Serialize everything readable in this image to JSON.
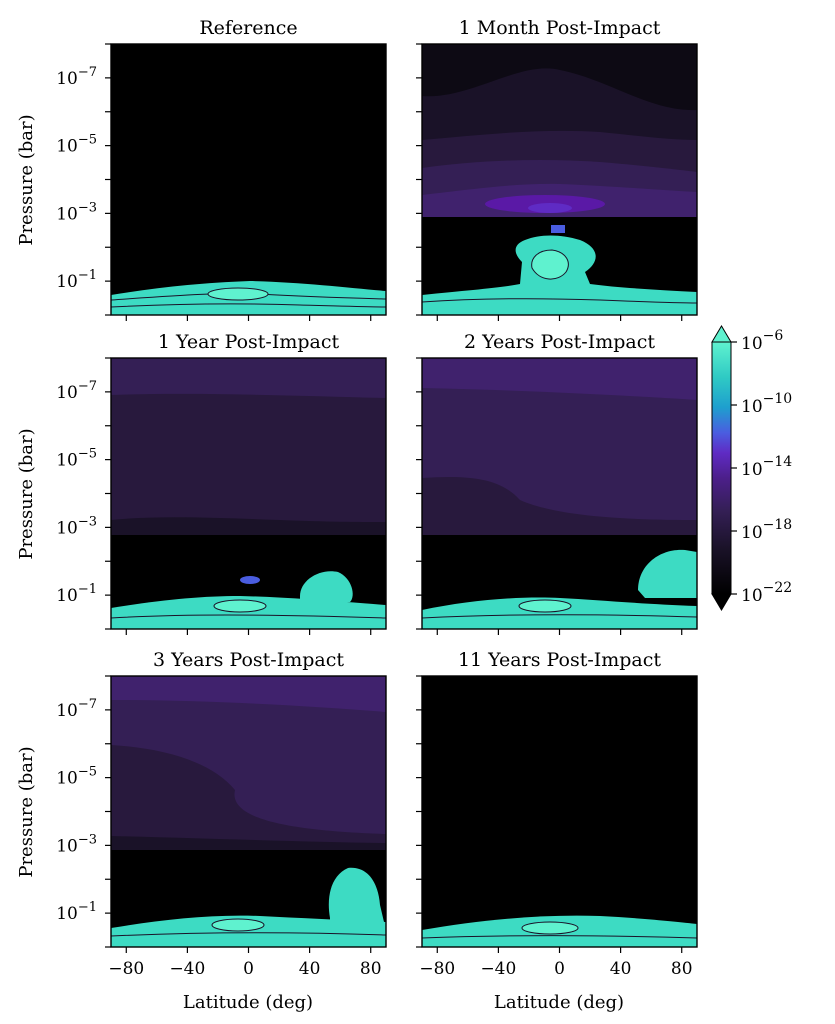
{
  "figure": {
    "ylabel": "Pressure (bar)",
    "xlabel": "Latitude (deg)"
  },
  "colorbar": {
    "tick_exponents": [
      "-6",
      "-10",
      "-14",
      "-18",
      "-22"
    ],
    "colors": [
      "#000000",
      "#0d0a14",
      "#1a1228",
      "#28193d",
      "#341f55",
      "#40226d",
      "#4c1f8a",
      "#5a19a6",
      "#5f2bc4",
      "#4a5de0",
      "#2a82d6",
      "#1e9fce",
      "#23b7c8",
      "#2fcac4",
      "#3ddbc3",
      "#4be8c8",
      "#5ff2cf"
    ]
  },
  "chart_data": [
    {
      "type": "heatmap",
      "title": "Reference",
      "x_ticks": [
        -80,
        -40,
        0,
        40,
        80
      ],
      "x_tick_labels": [
        "−80",
        "−40",
        "0",
        "40",
        "80"
      ],
      "xlim": [
        -90,
        90
      ],
      "y_scale": "log",
      "y_tick_exponents": [
        "-7",
        "-5",
        "-3",
        "-1"
      ],
      "ylim_bar": [
        1,
        1e-08
      ],
      "features": [
        "cyan haze layer near 0.1–1 bar at all latitudes",
        "black above"
      ]
    },
    {
      "type": "heatmap",
      "title": "1 Month Post-Impact",
      "x_ticks": [
        -80,
        -40,
        0,
        40,
        80
      ],
      "x_tick_labels": [
        "−80",
        "−40",
        "0",
        "40",
        "80"
      ],
      "xlim": [
        -90,
        90
      ],
      "y_scale": "log",
      "y_tick_exponents": [
        "-7",
        "-5",
        "-3",
        "-1"
      ],
      "features": [
        "purple layers above 1e-3 bar",
        "cyan plume centred near 0 deg rising to ~1e-3 bar"
      ]
    },
    {
      "type": "heatmap",
      "title": "1 Year Post-Impact",
      "x_ticks": [
        -80,
        -40,
        0,
        40,
        80
      ],
      "x_tick_labels": [
        "−80",
        "−40",
        "0",
        "40",
        "80"
      ],
      "xlim": [
        -90,
        90
      ],
      "y_scale": "log",
      "y_tick_exponents": [
        "-7",
        "-5",
        "-3",
        "-1"
      ],
      "features": [
        "uniform purple above 1e-3 bar",
        "cyan blob near 50 deg"
      ]
    },
    {
      "type": "heatmap",
      "title": "2 Years Post-Impact",
      "x_ticks": [
        -80,
        -40,
        0,
        40,
        80
      ],
      "x_tick_labels": [
        "−80",
        "−40",
        "0",
        "40",
        "80"
      ],
      "xlim": [
        -90,
        90
      ],
      "y_scale": "log",
      "y_tick_exponents": [
        "-7",
        "-5",
        "-3",
        "-1"
      ],
      "features": [
        "purple above 1e-3 bar",
        "cyan blob near 75 deg"
      ]
    },
    {
      "type": "heatmap",
      "title": "3 Years Post-Impact",
      "x_ticks": [
        -80,
        -40,
        0,
        40,
        80
      ],
      "x_tick_labels": [
        "−80",
        "−40",
        "0",
        "40",
        "80"
      ],
      "xlim": [
        -90,
        90
      ],
      "y_scale": "log",
      "y_tick_exponents": [
        "-7",
        "-5",
        "-3",
        "-1"
      ],
      "features": [
        "purple above 1e-3 bar",
        "tall cyan plume near 65 deg"
      ]
    },
    {
      "type": "heatmap",
      "title": "11 Years Post-Impact",
      "x_ticks": [
        -80,
        -40,
        0,
        40,
        80
      ],
      "x_tick_labels": [
        "−80",
        "−40",
        "0",
        "40",
        "80"
      ],
      "xlim": [
        -90,
        90
      ],
      "y_scale": "log",
      "y_tick_exponents": [
        "-7",
        "-5",
        "-3",
        "-1"
      ],
      "features": [
        "black above haze",
        "cyan haze layer near 0.1–1 bar"
      ]
    }
  ]
}
